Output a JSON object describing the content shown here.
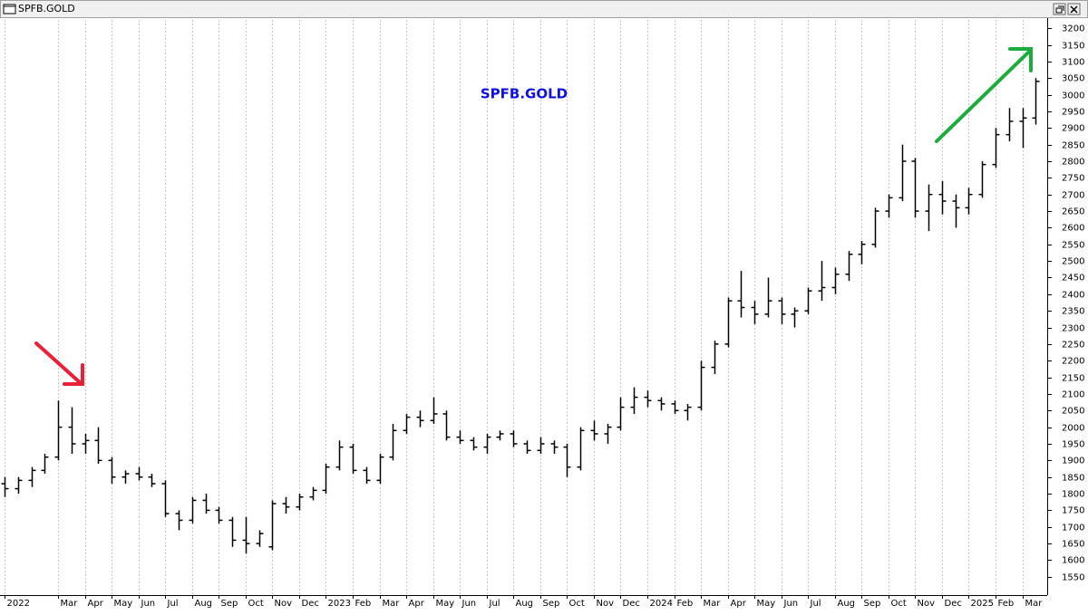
{
  "window_title": "SPFB.GOLD",
  "chart_data": {
    "type": "ohlc",
    "title": "SPFB.GOLD",
    "title_color": "#1010e0",
    "color": "#000000",
    "categories": [
      "2022",
      null,
      null,
      null,
      "Mar",
      null,
      "Apr",
      null,
      "May",
      null,
      "Jun",
      null,
      "Jul",
      null,
      "Aug",
      null,
      "Sep",
      null,
      "Oct",
      null,
      "Nov",
      null,
      "Dec",
      null,
      "2023",
      null,
      "Feb",
      null,
      "Mar",
      null,
      "Apr",
      null,
      "May",
      null,
      "Jun",
      null,
      "Jul",
      null,
      "Aug",
      null,
      "Sep",
      null,
      "Oct",
      null,
      "Nov",
      null,
      "Dec",
      null,
      "2024",
      null,
      "Feb",
      null,
      "Mar",
      null,
      "Apr",
      null,
      "May",
      null,
      "Jun",
      null,
      "Jul",
      null,
      "Aug",
      null,
      "Sep",
      null,
      "Oct",
      null,
      "Nov",
      null,
      "Dec",
      null,
      "2025",
      null,
      "Feb",
      null,
      "Mar",
      null
    ],
    "open": [
      1830,
      1815,
      1840,
      1870,
      1910,
      2000,
      1950,
      1960,
      1900,
      1850,
      1860,
      1850,
      1830,
      1740,
      1720,
      1780,
      1750,
      1720,
      1660,
      1650,
      1640,
      1770,
      1760,
      1790,
      1810,
      1880,
      1940,
      1870,
      1840,
      1910,
      1990,
      2030,
      2020,
      2040,
      1970,
      1960,
      1940,
      1970,
      1980,
      1950,
      1930,
      1950,
      1940,
      1880,
      1990,
      1980,
      2000,
      2060,
      2090,
      2080,
      2070,
      2050,
      2060,
      2180,
      2250,
      2380,
      2360,
      2340,
      2380,
      2340,
      2350,
      2410,
      2420,
      2460,
      2520,
      2550,
      2650,
      2690,
      2800,
      2650,
      2700,
      2680,
      2660,
      2700,
      2790,
      2880,
      2920,
      2930
    ],
    "high": [
      1850,
      1850,
      1880,
      1920,
      2080,
      2060,
      1980,
      2000,
      1910,
      1870,
      1880,
      1860,
      1840,
      1750,
      1790,
      1800,
      1760,
      1730,
      1730,
      1690,
      1780,
      1790,
      1800,
      1820,
      1890,
      1960,
      1950,
      1880,
      1920,
      2010,
      2040,
      2050,
      2090,
      2050,
      1990,
      1970,
      1980,
      1990,
      1990,
      1960,
      1970,
      1960,
      1950,
      2000,
      2020,
      2010,
      2090,
      2120,
      2110,
      2090,
      2080,
      2070,
      2200,
      2260,
      2390,
      2470,
      2380,
      2450,
      2390,
      2360,
      2420,
      2500,
      2480,
      2530,
      2560,
      2660,
      2700,
      2850,
      2810,
      2730,
      2740,
      2700,
      2720,
      2800,
      2900,
      2960,
      2960,
      3050
    ],
    "low": [
      1790,
      1800,
      1820,
      1860,
      1900,
      1920,
      1920,
      1890,
      1830,
      1830,
      1840,
      1820,
      1730,
      1690,
      1710,
      1740,
      1710,
      1640,
      1620,
      1640,
      1630,
      1740,
      1750,
      1780,
      1800,
      1870,
      1860,
      1830,
      1830,
      1900,
      1980,
      2000,
      2010,
      1960,
      1950,
      1930,
      1920,
      1960,
      1940,
      1920,
      1920,
      1920,
      1850,
      1870,
      1960,
      1950,
      1990,
      2040,
      2060,
      2050,
      2040,
      2020,
      2050,
      2160,
      2240,
      2330,
      2310,
      2330,
      2310,
      2300,
      2340,
      2380,
      2400,
      2440,
      2490,
      2540,
      2630,
      2680,
      2630,
      2590,
      2640,
      2600,
      2640,
      2690,
      2780,
      2860,
      2840,
      2910
    ],
    "close": [
      1815,
      1840,
      1870,
      1910,
      2000,
      1950,
      1960,
      1900,
      1850,
      1860,
      1850,
      1830,
      1740,
      1720,
      1780,
      1750,
      1720,
      1660,
      1650,
      1680,
      1770,
      1760,
      1790,
      1810,
      1880,
      1940,
      1870,
      1840,
      1910,
      1990,
      2030,
      2020,
      2040,
      1970,
      1960,
      1940,
      1970,
      1980,
      1950,
      1930,
      1950,
      1940,
      1880,
      1990,
      1980,
      2000,
      2060,
      2090,
      2080,
      2070,
      2050,
      2060,
      2180,
      2250,
      2380,
      2360,
      2340,
      2380,
      2340,
      2350,
      2410,
      2420,
      2460,
      2520,
      2550,
      2650,
      2690,
      2800,
      2650,
      2700,
      2680,
      2660,
      2700,
      2790,
      2880,
      2920,
      2930,
      3040
    ],
    "ylim": [
      1495,
      3225
    ],
    "yticks": [
      1550,
      1600,
      1650,
      1700,
      1750,
      1800,
      1850,
      1900,
      1950,
      2000,
      2050,
      2100,
      2150,
      2200,
      2250,
      2300,
      2350,
      2400,
      2450,
      2500,
      2550,
      2600,
      2650,
      2700,
      2750,
      2800,
      2850,
      2900,
      2950,
      3000,
      3050,
      3100,
      3150,
      3200
    ],
    "grid": true
  }
}
